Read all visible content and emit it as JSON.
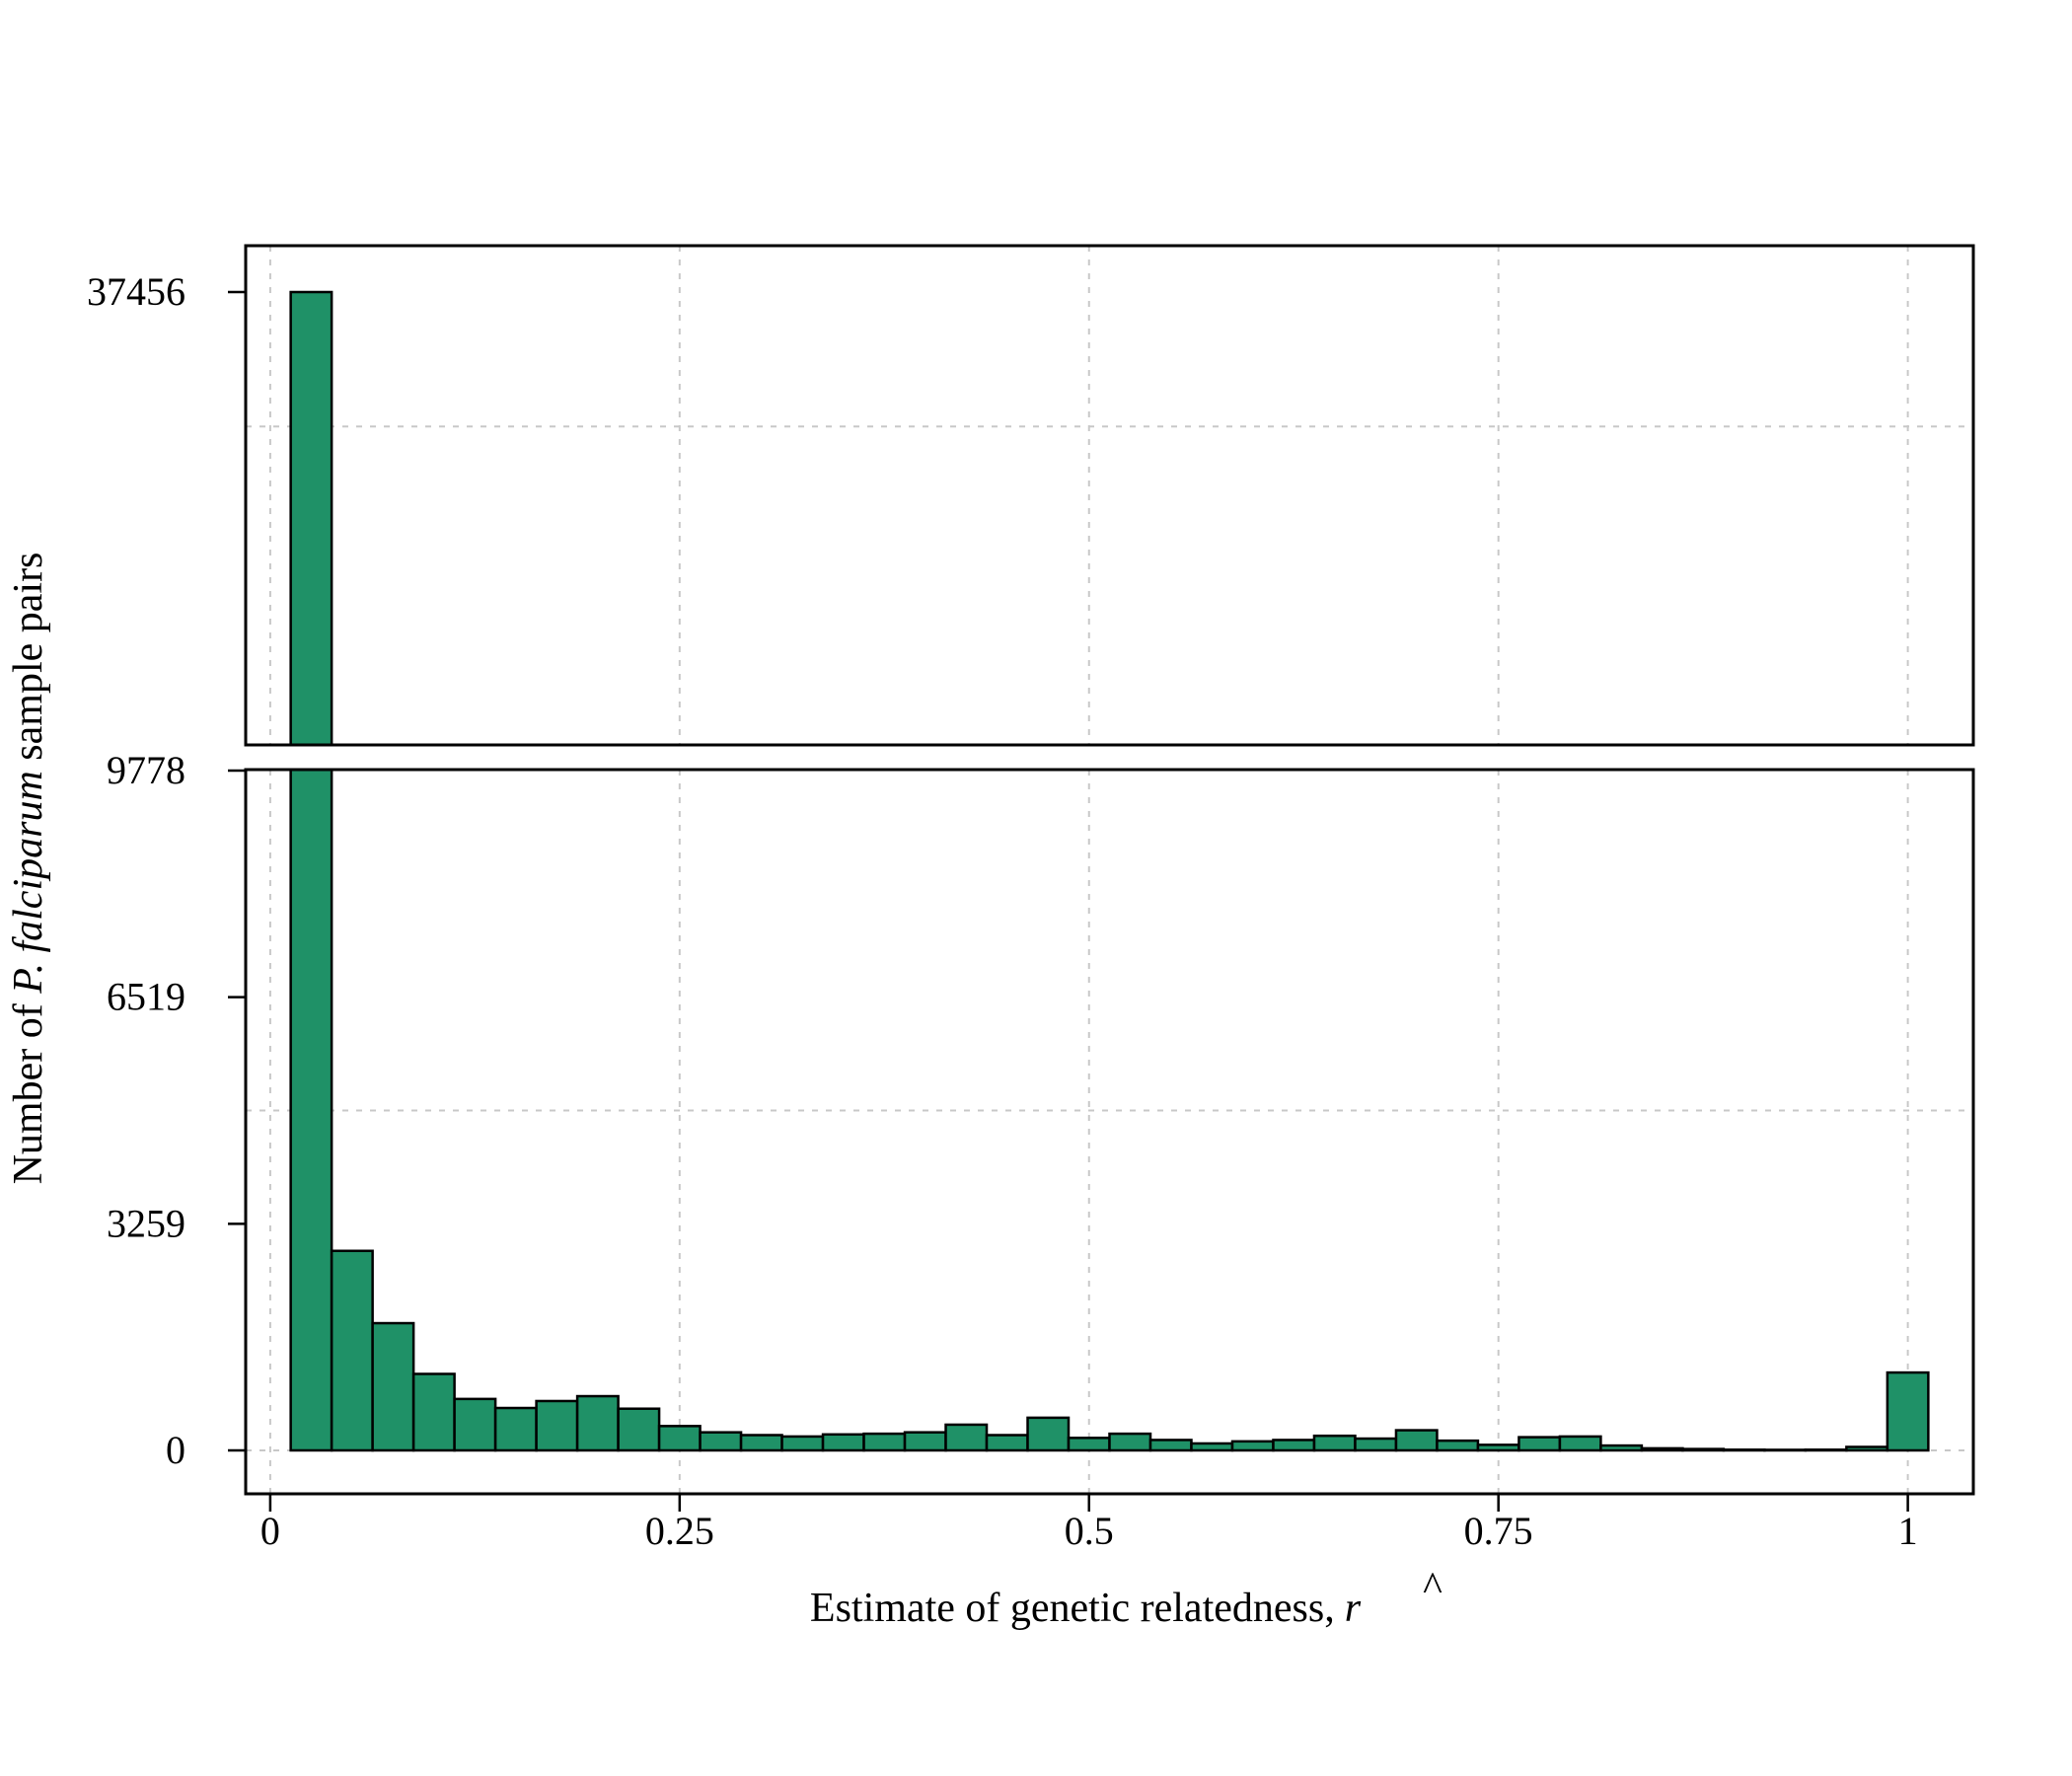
{
  "chart_data": {
    "type": "bar",
    "subtype": "histogram-broken-y-axis",
    "xlabel": "Estimate of genetic relatedness,",
    "xlabel_symbol": "r",
    "ylabel_prefix": "Number of ",
    "ylabel_species": "P. falciparum",
    "ylabel_suffix": " sample pairs",
    "xlim": [
      -0.015,
      1.04
    ],
    "x_ticks": [
      0,
      0.25,
      0.5,
      0.75,
      1
    ],
    "x_tick_labels": [
      "0",
      "0.25",
      "0.5",
      "0.75",
      "1"
    ],
    "y_lower_range": [
      0,
      9778
    ],
    "y_lower_ticks": [
      0,
      3259,
      6519,
      9778
    ],
    "y_lower_tick_labels": [
      "0",
      "3259",
      "6519",
      "9778"
    ],
    "y_upper_range": [
      27500,
      38150
    ],
    "y_upper_ticks": [
      37456
    ],
    "y_upper_tick_labels": [
      "37456"
    ],
    "y_upper_grid": [
      34500
    ],
    "y_lower_grid": [
      4889
    ],
    "grid": true,
    "bar_color": "#1f9167",
    "bin_width": 0.025,
    "bins_start": [
      0.0125,
      0.0375,
      0.0625,
      0.0875,
      0.1125,
      0.1375,
      0.1625,
      0.1875,
      0.2125,
      0.2375,
      0.2625,
      0.2875,
      0.3125,
      0.3375,
      0.3625,
      0.3875,
      0.4125,
      0.4375,
      0.4625,
      0.4875,
      0.5125,
      0.5375,
      0.5625,
      0.5875,
      0.6125,
      0.6375,
      0.6625,
      0.6875,
      0.7125,
      0.7375,
      0.7625,
      0.7875,
      0.8125,
      0.8375,
      0.8625,
      0.8875,
      0.9125,
      0.9375,
      0.9625,
      0.9875
    ],
    "values": [
      37456,
      2870,
      1830,
      1100,
      740,
      610,
      710,
      780,
      600,
      350,
      260,
      220,
      200,
      230,
      240,
      260,
      370,
      220,
      470,
      180,
      240,
      150,
      100,
      130,
      150,
      210,
      170,
      290,
      140,
      80,
      190,
      200,
      70,
      30,
      20,
      10,
      8,
      10,
      50,
      1120
    ]
  }
}
